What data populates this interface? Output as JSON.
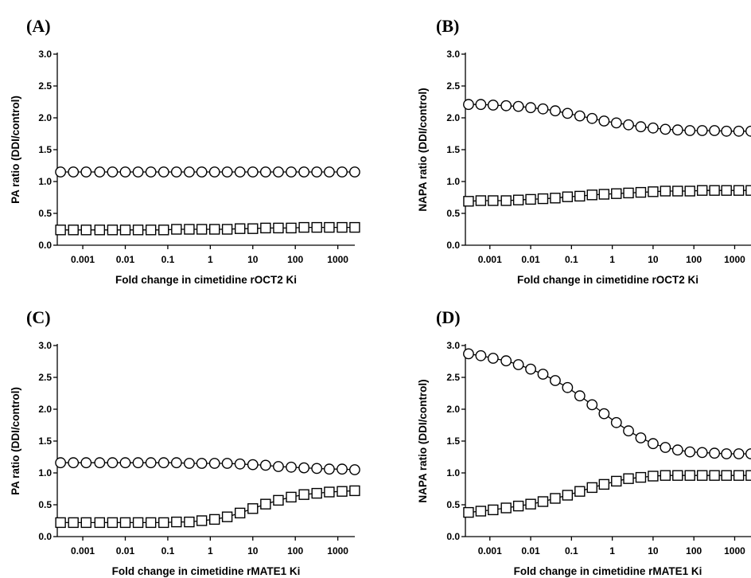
{
  "chart_data": [
    {
      "id": "A",
      "type": "scatter",
      "panel_label": "(A)",
      "xlabel": "Fold change in cimetidine rOCT2 Ki",
      "ylabel": "PA ratio (DDI/control)",
      "ylim": [
        0,
        3.0
      ],
      "xlim_log10": [
        -3.6,
        3.4
      ],
      "x_scale": "log",
      "y_ticks": [
        "0.0",
        "0.5",
        "1.0",
        "1.5",
        "2.0",
        "2.5",
        "3.0"
      ],
      "x_ticks": [
        "0.001",
        "0.01",
        "0.1",
        "1",
        "10",
        "100",
        "1000"
      ],
      "x": [
        0.0003,
        0.0006,
        0.0012,
        0.0025,
        0.005,
        0.01,
        0.02,
        0.04,
        0.08,
        0.16,
        0.32,
        0.63,
        1.26,
        2.5,
        5,
        10,
        20,
        40,
        80,
        160,
        320,
        630,
        1260,
        2500
      ],
      "series": [
        {
          "marker": "circle",
          "values": [
            1.15,
            1.15,
            1.15,
            1.15,
            1.15,
            1.15,
            1.15,
            1.15,
            1.15,
            1.15,
            1.15,
            1.15,
            1.15,
            1.15,
            1.15,
            1.15,
            1.15,
            1.15,
            1.15,
            1.15,
            1.15,
            1.15,
            1.15,
            1.15
          ]
        },
        {
          "marker": "square",
          "values": [
            0.24,
            0.24,
            0.24,
            0.24,
            0.24,
            0.24,
            0.24,
            0.24,
            0.24,
            0.25,
            0.25,
            0.25,
            0.25,
            0.25,
            0.26,
            0.26,
            0.27,
            0.27,
            0.27,
            0.28,
            0.28,
            0.28,
            0.28,
            0.28
          ]
        }
      ]
    },
    {
      "id": "B",
      "type": "scatter",
      "panel_label": "(B)",
      "xlabel": "Fold change in cimetidine rOCT2 Ki",
      "ylabel": "NAPA ratio (DDI/control)",
      "ylim": [
        0,
        3.0
      ],
      "xlim_log10": [
        -3.6,
        3.4
      ],
      "x_scale": "log",
      "y_ticks": [
        "0.0",
        "0.5",
        "1.0",
        "1.5",
        "2.0",
        "2.5",
        "3.0"
      ],
      "x_ticks": [
        "0.001",
        "0.01",
        "0.1",
        "1",
        "10",
        "100",
        "1000"
      ],
      "x": [
        0.0003,
        0.0006,
        0.0012,
        0.0025,
        0.005,
        0.01,
        0.02,
        0.04,
        0.08,
        0.16,
        0.32,
        0.63,
        1.26,
        2.5,
        5,
        10,
        20,
        40,
        80,
        160,
        320,
        630,
        1260,
        2500
      ],
      "series": [
        {
          "marker": "circle",
          "values": [
            2.21,
            2.21,
            2.2,
            2.19,
            2.18,
            2.16,
            2.14,
            2.11,
            2.07,
            2.03,
            1.99,
            1.95,
            1.92,
            1.89,
            1.86,
            1.84,
            1.82,
            1.81,
            1.8,
            1.8,
            1.8,
            1.79,
            1.79,
            1.79
          ]
        },
        {
          "marker": "square",
          "values": [
            0.69,
            0.7,
            0.7,
            0.7,
            0.71,
            0.72,
            0.73,
            0.74,
            0.76,
            0.77,
            0.79,
            0.8,
            0.81,
            0.82,
            0.83,
            0.84,
            0.85,
            0.85,
            0.85,
            0.86,
            0.86,
            0.86,
            0.86,
            0.86
          ]
        }
      ]
    },
    {
      "id": "C",
      "type": "scatter",
      "panel_label": "(C)",
      "xlabel": "Fold change in cimetidine rMATE1 Ki",
      "ylabel": "PA ratio (DDI/control)",
      "ylim": [
        0,
        3.0
      ],
      "xlim_log10": [
        -3.6,
        3.4
      ],
      "x_scale": "log",
      "y_ticks": [
        "0.0",
        "0.5",
        "1.0",
        "1.5",
        "2.0",
        "2.5",
        "3.0"
      ],
      "x_ticks": [
        "0.001",
        "0.01",
        "0.1",
        "1",
        "10",
        "100",
        "1000"
      ],
      "x": [
        0.0003,
        0.0006,
        0.0012,
        0.0025,
        0.005,
        0.01,
        0.02,
        0.04,
        0.08,
        0.16,
        0.32,
        0.63,
        1.26,
        2.5,
        5,
        10,
        20,
        40,
        80,
        160,
        320,
        630,
        1260,
        2500
      ],
      "series": [
        {
          "marker": "circle",
          "values": [
            1.16,
            1.16,
            1.16,
            1.16,
            1.16,
            1.16,
            1.16,
            1.16,
            1.16,
            1.16,
            1.15,
            1.15,
            1.15,
            1.15,
            1.14,
            1.13,
            1.12,
            1.1,
            1.09,
            1.08,
            1.07,
            1.06,
            1.06,
            1.05
          ]
        },
        {
          "marker": "square",
          "values": [
            0.22,
            0.22,
            0.22,
            0.22,
            0.22,
            0.22,
            0.22,
            0.22,
            0.22,
            0.23,
            0.23,
            0.25,
            0.27,
            0.31,
            0.37,
            0.44,
            0.51,
            0.57,
            0.62,
            0.66,
            0.68,
            0.7,
            0.71,
            0.72
          ]
        }
      ]
    },
    {
      "id": "D",
      "type": "scatter",
      "panel_label": "(D)",
      "xlabel": "Fold change in cimetidine rMATE1 Ki",
      "ylabel": "NAPA ratio (DDI/control)",
      "ylim": [
        0,
        3.0
      ],
      "xlim_log10": [
        -3.6,
        3.4
      ],
      "x_scale": "log",
      "y_ticks": [
        "0.0",
        "0.5",
        "1.0",
        "1.5",
        "2.0",
        "2.5",
        "3.0"
      ],
      "x_ticks": [
        "0.001",
        "0.01",
        "0.1",
        "1",
        "10",
        "100",
        "1000"
      ],
      "x": [
        0.0003,
        0.0006,
        0.0012,
        0.0025,
        0.005,
        0.01,
        0.02,
        0.04,
        0.08,
        0.16,
        0.32,
        0.63,
        1.26,
        2.5,
        5,
        10,
        20,
        40,
        80,
        160,
        320,
        630,
        1260,
        2500
      ],
      "series": [
        {
          "marker": "circle",
          "values": [
            2.87,
            2.84,
            2.8,
            2.76,
            2.7,
            2.63,
            2.55,
            2.45,
            2.34,
            2.21,
            2.07,
            1.93,
            1.79,
            1.66,
            1.55,
            1.46,
            1.4,
            1.36,
            1.33,
            1.32,
            1.31,
            1.3,
            1.3,
            1.3
          ]
        },
        {
          "marker": "square",
          "values": [
            0.38,
            0.4,
            0.42,
            0.45,
            0.48,
            0.51,
            0.55,
            0.6,
            0.65,
            0.71,
            0.77,
            0.82,
            0.87,
            0.91,
            0.93,
            0.95,
            0.96,
            0.96,
            0.96,
            0.96,
            0.96,
            0.96,
            0.96,
            0.96
          ]
        }
      ]
    }
  ]
}
